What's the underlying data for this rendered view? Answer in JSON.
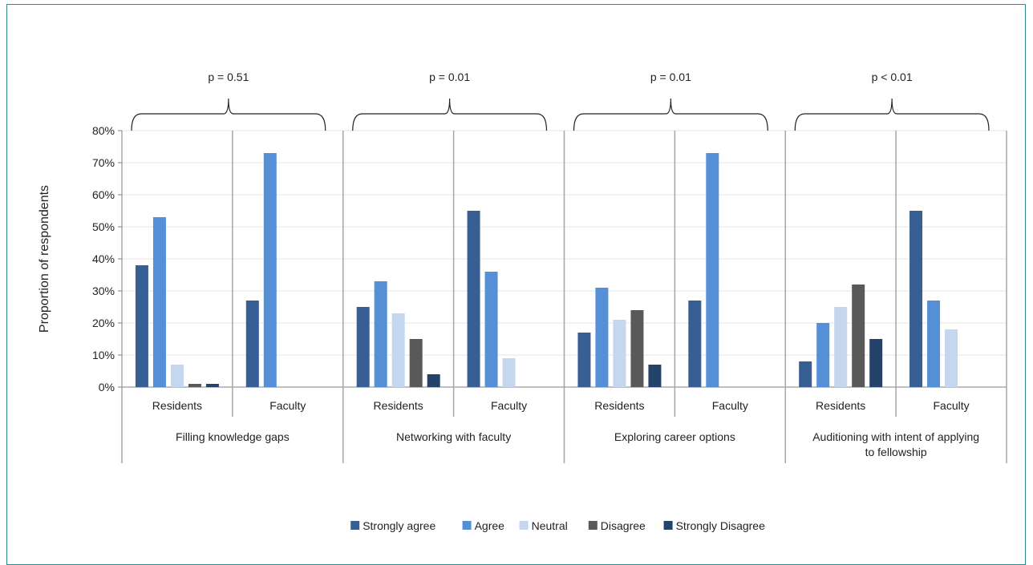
{
  "chart_data": {
    "type": "bar",
    "ylabel": "Proportion of respondents",
    "xlabel": "",
    "ylim": [
      0,
      80
    ],
    "ytick_step": 10,
    "ytick_suffix": "%",
    "grid": true,
    "legend_placement": "bottom",
    "series": [
      {
        "name": "Strongly agree",
        "color": "#385f93"
      },
      {
        "name": "Agree",
        "color": "#5590d6"
      },
      {
        "name": "Neutral",
        "color": "#c5d7ee"
      },
      {
        "name": "Disagree",
        "color": "#595959"
      },
      {
        "name": "Strongly Disagree",
        "color": "#25426a"
      }
    ],
    "groups": [
      {
        "label": "Filling knowledge gaps",
        "p_value": "p = 0.51",
        "subgroups": [
          {
            "label": "Residents",
            "values": [
              38,
              53,
              7,
              1,
              1
            ]
          },
          {
            "label": "Faculty",
            "values": [
              27,
              73,
              0,
              0,
              0
            ]
          }
        ]
      },
      {
        "label": "Networking with faculty",
        "p_value": "p = 0.01",
        "subgroups": [
          {
            "label": "Residents",
            "values": [
              25,
              33,
              23,
              15,
              4
            ]
          },
          {
            "label": "Faculty",
            "values": [
              55,
              36,
              9,
              0,
              0
            ]
          }
        ]
      },
      {
        "label": "Exploring career options",
        "p_value": "p = 0.01",
        "subgroups": [
          {
            "label": "Residents",
            "values": [
              17,
              31,
              21,
              24,
              7
            ]
          },
          {
            "label": "Faculty",
            "values": [
              27,
              73,
              0,
              0,
              0
            ]
          }
        ]
      },
      {
        "label": "Auditioning with intent of applying to fellowship",
        "p_value": "p < 0.01",
        "subgroups": [
          {
            "label": "Residents",
            "values": [
              8,
              20,
              25,
              32,
              15
            ]
          },
          {
            "label": "Faculty",
            "values": [
              55,
              27,
              18,
              0,
              0
            ]
          }
        ]
      }
    ]
  }
}
